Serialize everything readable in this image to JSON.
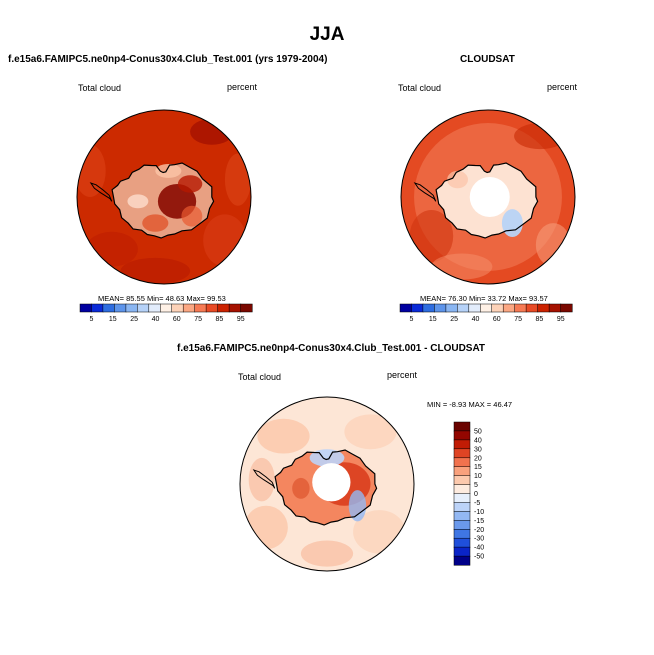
{
  "main_title": "JJA",
  "colors": {
    "model_scale": [
      "#0000a0",
      "#0a2ad8",
      "#2e6de0",
      "#5d94ea",
      "#8ab6f2",
      "#b6d2f8",
      "#e2ecfb",
      "#fff1e6",
      "#fdd2b8",
      "#fba783",
      "#f67a54",
      "#e84a25",
      "#cc2200",
      "#a51100",
      "#7a0800"
    ],
    "diff_scale": [
      "#000088",
      "#0a24c8",
      "#1f4fdb",
      "#3f76e4",
      "#6a99ec",
      "#93b8f3",
      "#bcd3f8",
      "#e6effc",
      "#fdebdf",
      "#fcc9ad",
      "#f9a17d",
      "#f1724e",
      "#df4424",
      "#c11c05",
      "#930600",
      "#6a0300"
    ]
  },
  "chart_data": [
    {
      "type": "heatmap",
      "projection": "south-polar-stereographic",
      "title": "f.e15a6.FAMIPC5.ne0np4-Conus30x4.Club_Test.001 (yrs 1979-2004)",
      "left_label": "Total cloud",
      "right_label": "percent",
      "stats": "MEAN= 85.55  Min= 48.63  Max= 99.53",
      "mean": 85.55,
      "min": 48.63,
      "max": 99.53,
      "colorbar_ticks": [
        "5",
        "15",
        "25",
        "40",
        "60",
        "75",
        "85",
        "95"
      ]
    },
    {
      "type": "heatmap",
      "projection": "south-polar-stereographic",
      "title": "CLOUDSAT",
      "left_label": "Total cloud",
      "right_label": "percent",
      "stats": "MEAN= 76.30  Min= 33.72  Max= 93.57",
      "mean": 76.3,
      "min": 33.72,
      "max": 93.57,
      "colorbar_ticks": [
        "5",
        "15",
        "25",
        "40",
        "60",
        "75",
        "85",
        "95"
      ]
    },
    {
      "type": "heatmap",
      "projection": "south-polar-stereographic",
      "title": "f.e15a6.FAMIPC5.ne0np4-Conus30x4.Club_Test.001 - CLOUDSAT",
      "left_label": "Total cloud",
      "right_label": "percent",
      "stats": "MIN = -8.93 MAX = 46.47",
      "min": -8.93,
      "max": 46.47,
      "colorbar_ticks": [
        "50",
        "40",
        "30",
        "20",
        "15",
        "10",
        "5",
        "0",
        "-5",
        "-10",
        "-15",
        "-20",
        "-30",
        "-40",
        "-50"
      ]
    }
  ]
}
